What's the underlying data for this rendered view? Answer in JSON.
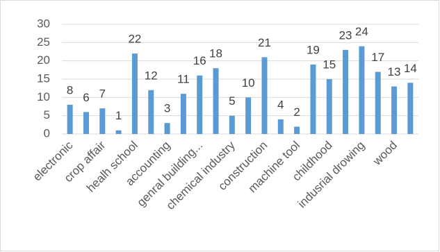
{
  "chart_data": {
    "type": "bar",
    "categories": [
      "electronic",
      null,
      "crop affair",
      null,
      "healh school",
      null,
      "accounting",
      null,
      "genral building...",
      null,
      "chemical industry",
      null,
      "construction",
      null,
      "machine tool",
      null,
      "childhood",
      null,
      "indusrial drowing",
      null,
      "wood",
      null
    ],
    "values": [
      8,
      6,
      7,
      1,
      22,
      12,
      3,
      11,
      16,
      18,
      5,
      10,
      21,
      4,
      2,
      19,
      15,
      23,
      24,
      17,
      13,
      14
    ],
    "color": "#5b9bd5",
    "ylim": [
      0,
      30
    ],
    "yticks": [
      0,
      5,
      10,
      15,
      20,
      25,
      30
    ],
    "grid": true
  }
}
